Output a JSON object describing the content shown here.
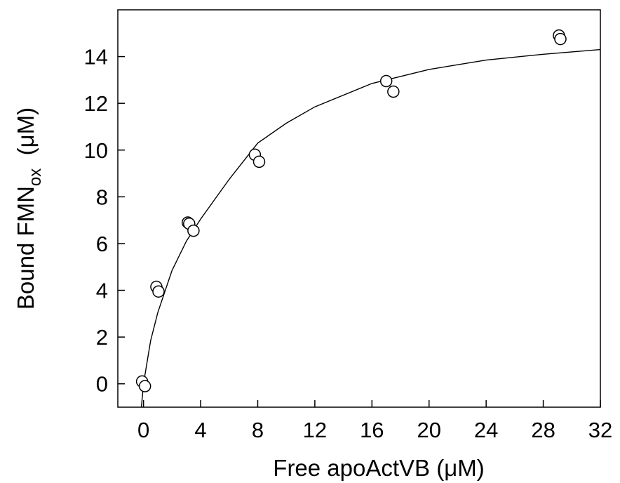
{
  "chart_data": {
    "type": "scatter",
    "title": "",
    "xlabel": "Free apoActVB  (μM)",
    "ylabel_main": "Bound FMN",
    "ylabel_sub": "ox",
    "ylabel_unit": "  (μM)",
    "xlim": [
      -1.8,
      32
    ],
    "ylim": [
      -1.0,
      16.0
    ],
    "xticks": [
      0,
      4,
      8,
      12,
      16,
      20,
      24,
      28,
      32
    ],
    "yticks": [
      0,
      2,
      4,
      6,
      8,
      10,
      12,
      14
    ],
    "grid": false,
    "series": [
      {
        "type": "scatter",
        "marker": "open-circle",
        "points": [
          {
            "x": -0.1,
            "y": 0.1
          },
          {
            "x": 0.1,
            "y": -0.1
          },
          {
            "x": 0.9,
            "y": 4.15
          },
          {
            "x": 1.05,
            "y": 3.95
          },
          {
            "x": 3.1,
            "y": 6.9
          },
          {
            "x": 3.2,
            "y": 6.85
          },
          {
            "x": 3.5,
            "y": 6.55
          },
          {
            "x": 7.8,
            "y": 9.8
          },
          {
            "x": 8.1,
            "y": 9.5
          },
          {
            "x": 17.0,
            "y": 12.95
          },
          {
            "x": 17.5,
            "y": 12.5
          },
          {
            "x": 29.1,
            "y": 14.9
          },
          {
            "x": 29.2,
            "y": 14.75
          }
        ]
      },
      {
        "type": "line",
        "style": "solid",
        "points": [
          {
            "x": -0.15,
            "y": -1.0
          },
          {
            "x": 0.0,
            "y": 0.0
          },
          {
            "x": 0.5,
            "y": 1.85
          },
          {
            "x": 1.0,
            "y": 3.05
          },
          {
            "x": 2.0,
            "y": 4.85
          },
          {
            "x": 3.0,
            "y": 6.1
          },
          {
            "x": 4.0,
            "y": 7.05
          },
          {
            "x": 6.0,
            "y": 8.75
          },
          {
            "x": 8.0,
            "y": 10.3
          },
          {
            "x": 10.0,
            "y": 11.15
          },
          {
            "x": 12.0,
            "y": 11.85
          },
          {
            "x": 16.0,
            "y": 12.85
          },
          {
            "x": 20.0,
            "y": 13.45
          },
          {
            "x": 24.0,
            "y": 13.85
          },
          {
            "x": 28.0,
            "y": 14.1
          },
          {
            "x": 32.0,
            "y": 14.3
          }
        ]
      }
    ]
  }
}
